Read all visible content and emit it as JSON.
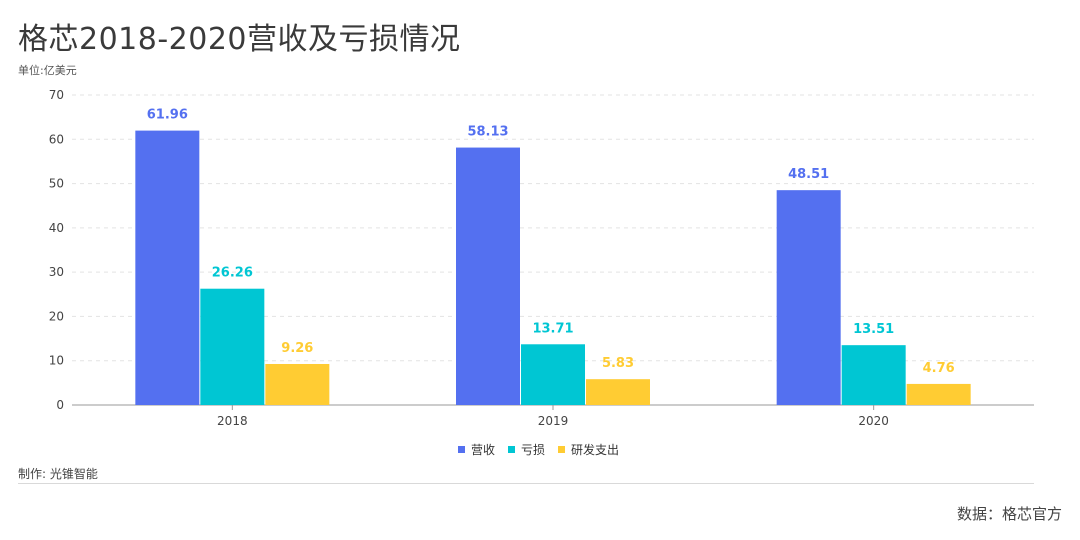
{
  "title": "格芯2018-2020营收及亏损情况",
  "unit_label": "单位:亿美元",
  "maker": "制作: 光锥智能",
  "source": "数据：格芯官方",
  "colors": {
    "revenue": "#5470f0",
    "loss": "#00c6d3",
    "rnd": "#ffcc33"
  },
  "chart_data": {
    "type": "bar",
    "categories": [
      "2018",
      "2019",
      "2020"
    ],
    "series": [
      {
        "name": "营收",
        "values": [
          61.96,
          58.13,
          48.51
        ]
      },
      {
        "name": "亏损",
        "values": [
          26.26,
          13.71,
          13.51
        ]
      },
      {
        "name": "研发支出",
        "values": [
          9.26,
          5.83,
          4.76
        ]
      }
    ],
    "value_labels": [
      [
        "61.96",
        "58.13",
        "48.51"
      ],
      [
        "26.26",
        "13.71",
        "13.51"
      ],
      [
        "9.26",
        "5.83",
        "4.76"
      ]
    ],
    "yticks": [
      "0",
      "10",
      "20",
      "30",
      "40",
      "50",
      "60",
      "70"
    ],
    "ylim": [
      0,
      70
    ],
    "grid": true,
    "legend_position": "bottom-center"
  }
}
